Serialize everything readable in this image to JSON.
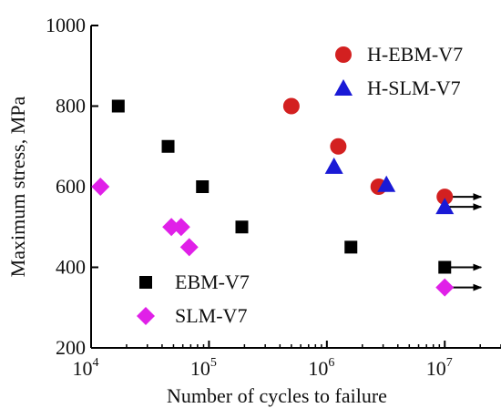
{
  "chart_data": {
    "type": "scatter",
    "title": "",
    "xlabel": "Number of cycles to failure",
    "ylabel": "Maximum stress, MPa",
    "xscale": "log",
    "xlim": [
      10000,
      30000000
    ],
    "ylim": [
      200,
      1000
    ],
    "x_ticks": [
      {
        "value": 10000,
        "base": "10",
        "exp": "4"
      },
      {
        "value": 100000,
        "base": "10",
        "exp": "5"
      },
      {
        "value": 1000000,
        "base": "10",
        "exp": "6"
      },
      {
        "value": 10000000,
        "base": "10",
        "exp": "7"
      }
    ],
    "y_ticks": [
      {
        "value": 200,
        "label": "200"
      },
      {
        "value": 400,
        "label": "400"
      },
      {
        "value": 600,
        "label": "600"
      },
      {
        "value": 800,
        "label": "800"
      },
      {
        "value": 1000,
        "label": "1000"
      }
    ],
    "grid": false,
    "series": [
      {
        "name": "H-EBM-V7",
        "marker": "circle",
        "color": "#d32020",
        "legend_group": "top-right",
        "points": [
          {
            "x": 500000,
            "y": 800
          },
          {
            "x": 1250000,
            "y": 700
          },
          {
            "x": 2750000,
            "y": 600
          },
          {
            "x": 10000000,
            "y": 575,
            "runout": true
          }
        ]
      },
      {
        "name": "H-SLM-V7",
        "marker": "triangle",
        "color": "#1a1ad6",
        "legend_group": "top-right",
        "points": [
          {
            "x": 1150000,
            "y": 650
          },
          {
            "x": 3200000,
            "y": 605
          },
          {
            "x": 10000000,
            "y": 550,
            "runout": true
          }
        ]
      },
      {
        "name": "EBM-V7",
        "marker": "square",
        "color": "#000000",
        "legend_group": "bottom-left",
        "points": [
          {
            "x": 17000,
            "y": 800
          },
          {
            "x": 45000,
            "y": 700
          },
          {
            "x": 88000,
            "y": 600
          },
          {
            "x": 190000,
            "y": 500
          },
          {
            "x": 1600000,
            "y": 450
          },
          {
            "x": 10000000,
            "y": 400,
            "runout": true
          }
        ]
      },
      {
        "name": "SLM-V7",
        "marker": "diamond",
        "color": "#e020e8",
        "legend_group": "bottom-left",
        "points": [
          {
            "x": 12000,
            "y": 600
          },
          {
            "x": 48000,
            "y": 500
          },
          {
            "x": 58000,
            "y": 500
          },
          {
            "x": 68000,
            "y": 450
          },
          {
            "x": 10000000,
            "y": 350,
            "runout": true
          }
        ]
      }
    ]
  }
}
